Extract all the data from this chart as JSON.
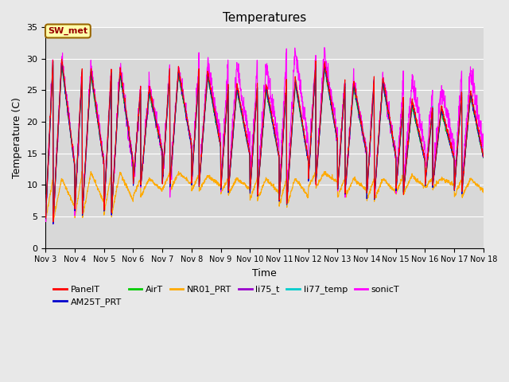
{
  "title": "Temperatures",
  "xlabel": "Time",
  "ylabel": "Temperature (C)",
  "ylim": [
    0,
    35
  ],
  "xlim_days": [
    3,
    18
  ],
  "annotation": "SW_met",
  "background_color": "#d8d8d8",
  "grid_color": "#ffffff",
  "series_colors": {
    "PanelT": "#ff0000",
    "AM25T_PRT": "#0000cc",
    "AirT": "#00cc00",
    "NR01_PRT": "#ffaa00",
    "li75_t": "#9900cc",
    "li77_temp": "#00cccc",
    "sonicT": "#ff00ff"
  },
  "n_days": 15,
  "start_day": 3,
  "points_per_day": 144,
  "day_maxs": [
    30,
    28.5,
    28.5,
    25.5,
    28.5,
    28,
    26,
    26,
    27,
    29.5,
    26.5,
    27,
    23.5,
    22.5,
    25
  ],
  "day_mins": [
    3.5,
    5,
    5,
    9.5,
    9.5,
    9.5,
    8.5,
    8,
    6.5,
    10,
    8.5,
    7.5,
    8.5,
    9.5,
    8.5
  ],
  "nr01_maxs": [
    11,
    12,
    12,
    11,
    12,
    11.5,
    11,
    11,
    11,
    12,
    11,
    11,
    11.5,
    11,
    11
  ],
  "nr01_mins": [
    4,
    4.5,
    5,
    8,
    9,
    9,
    8.5,
    7.5,
    6.5,
    9.5,
    8,
    7.5,
    8.5,
    9.5,
    8
  ],
  "sonic_offsets": [
    0,
    0,
    0,
    0,
    0,
    1,
    2,
    2,
    3,
    1,
    0,
    0,
    2,
    2,
    2
  ],
  "fig_width": 6.4,
  "fig_height": 4.8,
  "dpi": 100
}
